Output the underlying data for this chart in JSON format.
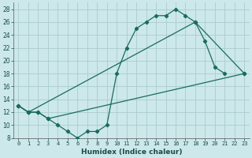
{
  "title": "",
  "xlabel": "Humidex (Indice chaleur)",
  "bg_color": "#cce8ea",
  "grid_color": "#aacccc",
  "line_color": "#1a6b5e",
  "xlim": [
    -0.5,
    23.5
  ],
  "ylim": [
    8,
    29
  ],
  "xticks": [
    0,
    1,
    2,
    3,
    4,
    5,
    6,
    7,
    8,
    9,
    10,
    11,
    12,
    13,
    14,
    15,
    16,
    17,
    18,
    19,
    20,
    21,
    22,
    23
  ],
  "yticks": [
    8,
    10,
    12,
    14,
    16,
    18,
    20,
    22,
    24,
    26,
    28
  ],
  "line1_x": [
    0,
    1,
    2,
    3,
    4,
    5,
    6,
    7,
    8,
    9,
    10,
    11,
    12,
    13,
    14,
    15,
    16,
    17,
    18,
    19,
    20,
    21
  ],
  "line1_y": [
    13,
    12,
    12,
    11,
    10,
    9,
    8,
    9,
    9,
    10,
    18,
    22,
    25,
    26,
    27,
    27,
    28,
    27,
    26,
    23,
    19,
    18
  ],
  "line2_x": [
    0,
    1,
    18,
    23
  ],
  "line2_y": [
    13,
    12,
    26,
    18
  ],
  "line3_x": [
    0,
    1,
    2,
    3,
    23
  ],
  "line3_y": [
    13,
    12,
    12,
    11,
    18
  ]
}
